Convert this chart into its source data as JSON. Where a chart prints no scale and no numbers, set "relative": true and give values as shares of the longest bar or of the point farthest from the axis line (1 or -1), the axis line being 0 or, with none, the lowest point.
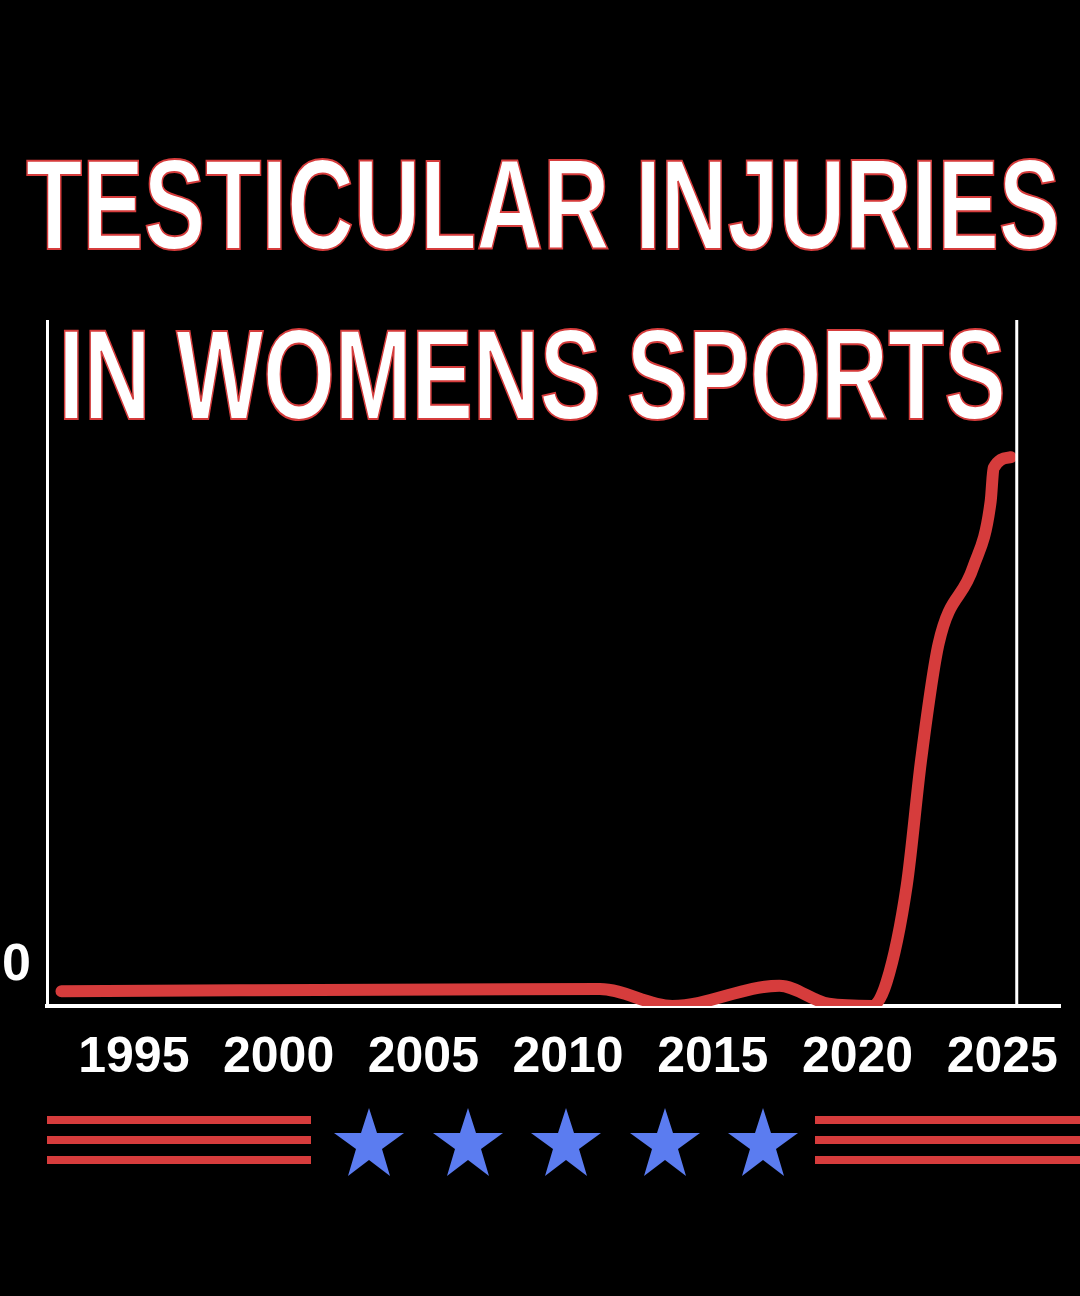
{
  "chart_data": {
    "type": "line",
    "title": "TESTICULAR INJURIES IN WOMENS SPORTS",
    "relative": true,
    "x": [
      1992.5,
      2011.1,
      2013.6,
      2017.3,
      2019,
      2020.5,
      2021,
      2021.7,
      2022.2,
      2022.8,
      2024,
      2024.6,
      2024.7,
      2025.3
    ],
    "series": [
      {
        "color": "#d63c3c",
        "values": [
          0.027,
          0.031,
          0,
          0.037,
          0.004,
          0,
          0.043,
          0.22,
          0.45,
          0.66,
          0.8,
          0.92,
          0.98,
          1
        ]
      }
    ],
    "xlim": [
      1992,
      2027
    ],
    "xticks": [
      1995,
      2000,
      2005,
      2010,
      2015,
      2020,
      2025
    ],
    "ref_lines": [
      {
        "axis": "x",
        "value": 2025.5,
        "color": "#ffffff"
      }
    ],
    "annotations": [
      "0"
    ],
    "grid": false,
    "legend": false,
    "marker": "none",
    "line_style": "solid"
  }
}
